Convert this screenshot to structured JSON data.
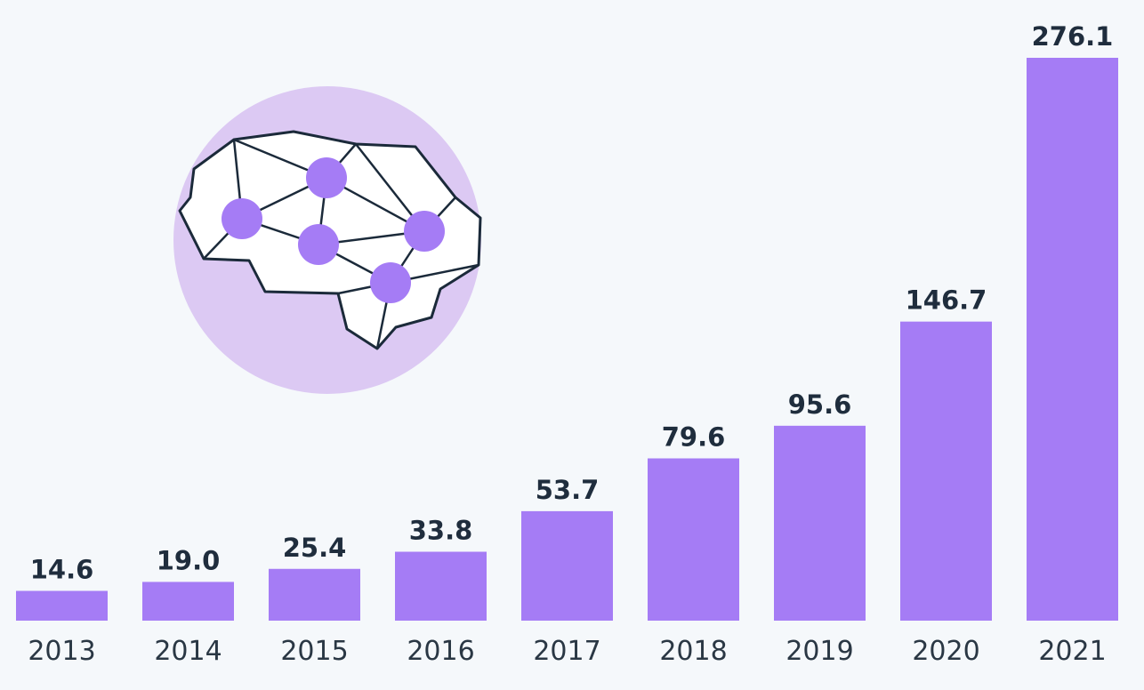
{
  "chart_data": {
    "type": "bar",
    "title": "",
    "xlabel": "",
    "ylabel": "",
    "categories": [
      "2013",
      "2014",
      "2015",
      "2016",
      "2017",
      "2018",
      "2019",
      "2020",
      "2021"
    ],
    "values": [
      14.6,
      19.0,
      25.4,
      33.8,
      53.7,
      79.6,
      95.6,
      146.7,
      276.1
    ],
    "value_labels": [
      "14.6",
      "19.0",
      "25.4",
      "33.8",
      "53.7",
      "79.6",
      "95.6",
      "146.7",
      "276.1"
    ],
    "ylim": [
      0,
      276.1
    ],
    "grid": false,
    "legend": "none"
  },
  "colors": {
    "background": "#f5f8fb",
    "bar": "#a57cf5",
    "value_text": "#1f2d3d",
    "category_text": "#2a3744",
    "brain_circle": "#dcc9f3",
    "brain_fill": "#ffffff",
    "brain_stroke": "#1b2a3a",
    "brain_node": "#a57cf5"
  },
  "illustration": {
    "icon": "brain-network-icon"
  }
}
